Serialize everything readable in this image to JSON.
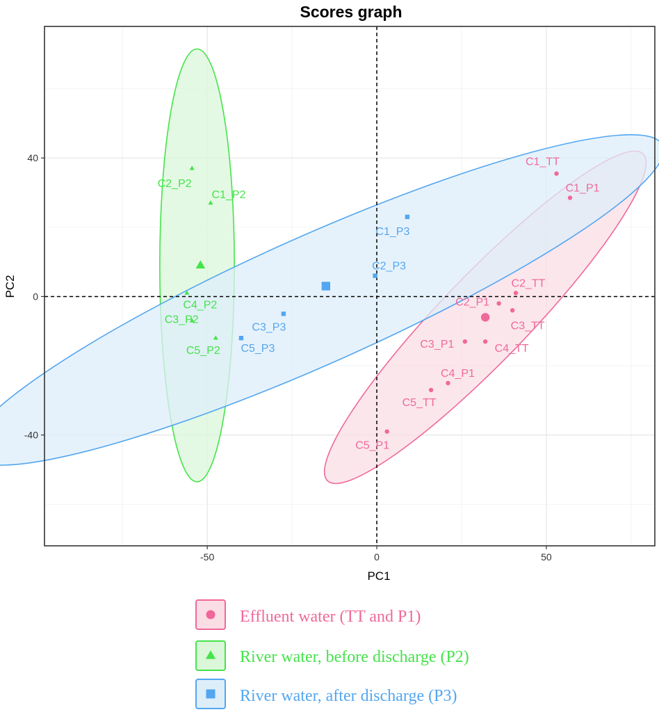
{
  "chart_data": {
    "type": "scatter",
    "title": "Scores graph",
    "xlabel": "PC1",
    "ylabel": "PC2",
    "xlim": [
      -98,
      82
    ],
    "ylim": [
      -72,
      78
    ],
    "xticks": [
      -50,
      0,
      50
    ],
    "xtick_labels": [
      "-50",
      "0",
      "50"
    ],
    "yticks": [
      -40,
      0,
      40
    ],
    "ytick_labels": [
      "-40",
      "0",
      "40"
    ],
    "grid": true,
    "reference_lines": {
      "x": 0,
      "y": 0
    },
    "legend_position": "bottom",
    "series": [
      {
        "legend_label": "Effluent water (TT and P1)",
        "marker": "circle",
        "color": "#F0689A",
        "fill": "#FADDE5",
        "centroid": {
          "x": 32,
          "y": -6
        },
        "ellipse": {
          "center": [
            32,
            -6
          ],
          "radii": [
            67,
            12.5
          ],
          "angle_deg": 46
        },
        "points": [
          {
            "label": "C1_TT",
            "x": 53,
            "y": 35.5
          },
          {
            "label": "C1_P1",
            "x": 57,
            "y": 28.5
          },
          {
            "label": "C2_TT",
            "x": 41,
            "y": 1
          },
          {
            "label": "C2_P1",
            "x": 36,
            "y": -2
          },
          {
            "label": "C3_TT",
            "x": 40,
            "y": -4
          },
          {
            "label": "C3_P1",
            "x": 26,
            "y": -13
          },
          {
            "label": "C4_TT",
            "x": 32,
            "y": -13
          },
          {
            "label": "C4_P1",
            "x": 21,
            "y": -25
          },
          {
            "label": "C5_TT",
            "x": 16,
            "y": -27
          },
          {
            "label": "C5_P1",
            "x": 3,
            "y": -39
          }
        ]
      },
      {
        "legend_label": "River water, before discharge (P2)",
        "marker": "triangle",
        "color": "#44E34A",
        "fill": "#DBF7D9",
        "centroid": {
          "x": -52,
          "y": 9
        },
        "ellipse": {
          "center": [
            -53,
            9
          ],
          "radii": [
            11,
            62.5
          ],
          "angle_deg": 0
        },
        "points": [
          {
            "label": "C2_P2",
            "x": -54.5,
            "y": 37
          },
          {
            "label": "C1_P2",
            "x": -49,
            "y": 27
          },
          {
            "label": "C4_P2",
            "x": -56,
            "y": 1
          },
          {
            "label": "C3_P2",
            "x": -54.5,
            "y": -7
          },
          {
            "label": "C5_P2",
            "x": -47.5,
            "y": -12
          }
        ]
      },
      {
        "legend_label": "River water, after discharge (P3)",
        "marker": "square",
        "color": "#53A6F0",
        "fill": "#DDEEF9",
        "centroid": {
          "x": -15,
          "y": 3
        },
        "ellipse": {
          "center": [
            -18,
            -1
          ],
          "radii": [
            112,
            18.5
          ],
          "angle_deg": 24
        },
        "points": [
          {
            "label": "C1_P3",
            "x": 9,
            "y": 23
          },
          {
            "label": "C2_P3",
            "x": -0.5,
            "y": 6
          },
          {
            "label": "C3_P3",
            "x": -27.5,
            "y": -5
          },
          {
            "label": "C5_P3",
            "x": -40,
            "y": -12
          }
        ]
      }
    ]
  }
}
